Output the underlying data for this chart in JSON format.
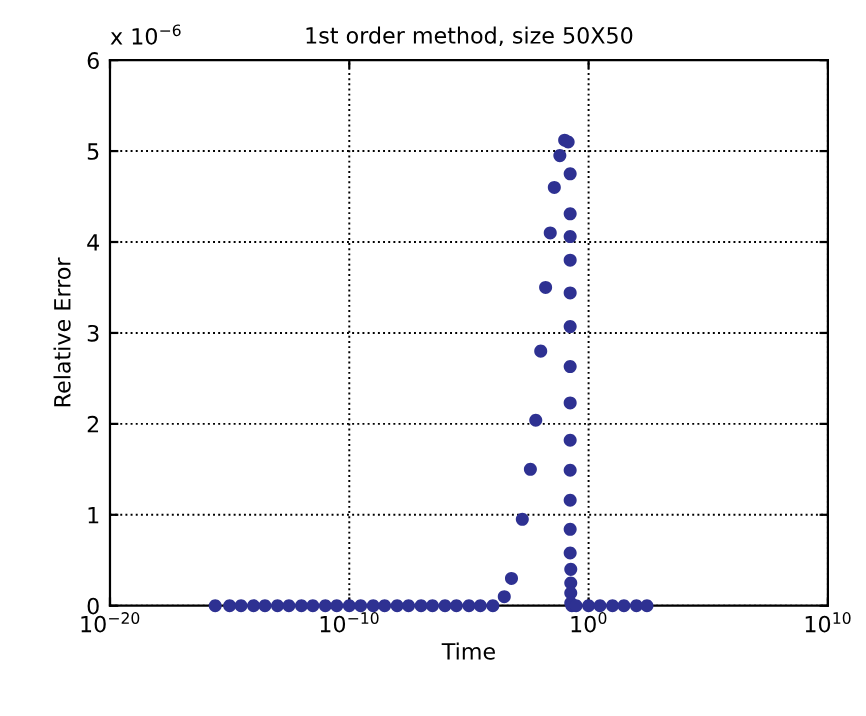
{
  "chart_data": {
    "type": "scatter",
    "title": "1st order method, size 50X50",
    "xlabel": "Time",
    "ylabel": "Relative Error",
    "annotations": [
      "x 10$^{−6}$"
    ],
    "log": "x",
    "marker": "circle",
    "grid": true,
    "xlim": [
      1e-20,
      10000000000.0
    ],
    "xticks": [
      {
        "value": 1e-20,
        "label": "10$^{−20}$"
      },
      {
        "value": 1e-10,
        "label": "10$^{−10}$"
      },
      {
        "value": 1,
        "label": "10$^{0}$"
      },
      {
        "value": 10000000000.0,
        "label": "10$^{10}$"
      }
    ],
    "ylim": [
      0,
      6
    ],
    "yticks": [
      0,
      1,
      2,
      3,
      4,
      5,
      6
    ],
    "series": [
      {
        "color": "#2e3192",
        "x": [
          2.5e-16,
          1e-15,
          3e-15,
          1e-14,
          3e-14,
          1e-13,
          3e-13,
          1e-12,
          3e-12,
          1e-11,
          3e-11,
          1e-10,
          3e-10,
          1e-09,
          3e-09,
          1e-08,
          3e-08,
          1e-07,
          3e-07,
          1e-06,
          3e-06,
          1e-05,
          3e-05,
          0.0001,
          0.0003,
          0.0006,
          0.0017,
          0.0037,
          0.0062,
          0.01,
          0.016,
          0.025,
          0.037,
          0.063,
          0.1,
          0.14,
          0.17,
          0.17,
          0.17,
          0.17,
          0.17,
          0.17,
          0.17,
          0.17,
          0.17,
          0.17,
          0.17,
          0.17,
          0.17,
          0.18,
          0.18,
          0.18,
          0.18,
          0.2,
          0.3,
          1,
          3,
          10,
          30,
          100,
          275
        ],
        "values": [
          0,
          0,
          0,
          0,
          0,
          0,
          0,
          0,
          0,
          0,
          0,
          0,
          0,
          0,
          0,
          0,
          0,
          0,
          0,
          0,
          0,
          0,
          0,
          0,
          0.1,
          0.3,
          0.95,
          1.5,
          2.04,
          2.8,
          3.5,
          4.1,
          4.6,
          4.95,
          5.12,
          5.1,
          4.75,
          4.31,
          4.06,
          3.8,
          3.44,
          3.07,
          2.63,
          2.23,
          1.82,
          1.49,
          1.16,
          0.84,
          0.58,
          0.4,
          0.25,
          0.14,
          0.03,
          0,
          0,
          0,
          0,
          0,
          0,
          0,
          0
        ]
      }
    ]
  }
}
